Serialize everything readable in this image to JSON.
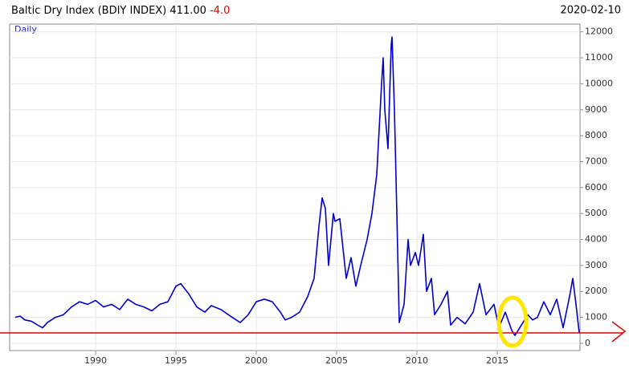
{
  "chart_data": {
    "type": "line",
    "title": "Baltic Dry Index (BDIY INDEX)",
    "last_value": "411.00",
    "change": "-4.0",
    "date": "2020-02-10",
    "x": [
      1985.0,
      1985.3,
      1985.6,
      1986.0,
      1986.4,
      1986.7,
      1987.0,
      1987.5,
      1988.0,
      1988.5,
      1989.0,
      1989.5,
      1990.0,
      1990.5,
      1991.0,
      1991.5,
      1992.0,
      1992.5,
      1993.0,
      1993.5,
      1994.0,
      1994.5,
      1995.0,
      1995.3,
      1995.8,
      1996.3,
      1996.8,
      1997.2,
      1997.8,
      1998.5,
      1999.0,
      1999.5,
      2000.0,
      2000.5,
      2001.0,
      2001.5,
      2001.8,
      2002.2,
      2002.7,
      2003.2,
      2003.6,
      2003.9,
      2004.1,
      2004.3,
      2004.5,
      2004.8,
      2004.9,
      2005.2,
      2005.6,
      2005.9,
      2006.2,
      2006.5,
      2006.9,
      2007.2,
      2007.5,
      2007.8,
      2007.9,
      2008.0,
      2008.2,
      2008.4,
      2008.45,
      2008.6,
      2008.75,
      2008.9,
      2009.2,
      2009.45,
      2009.6,
      2009.9,
      2010.1,
      2010.4,
      2010.6,
      2010.9,
      2011.1,
      2011.5,
      2011.9,
      2012.1,
      2012.5,
      2013.0,
      2013.5,
      2013.9,
      2014.3,
      2014.8,
      2015.1,
      2015.5,
      2015.9,
      2016.1,
      2016.5,
      2016.9,
      2017.2,
      2017.5,
      2017.9,
      2018.3,
      2018.7,
      2019.1,
      2019.5,
      2019.7,
      2019.9,
      2020.1
    ],
    "series": [
      {
        "name": "Daily",
        "color": "#0000cc",
        "values": [
          1000,
          1050,
          900,
          850,
          700,
          600,
          800,
          1000,
          1100,
          1400,
          1600,
          1500,
          1650,
          1400,
          1500,
          1300,
          1700,
          1500,
          1400,
          1250,
          1500,
          1600,
          2200,
          2300,
          1900,
          1400,
          1200,
          1450,
          1300,
          1000,
          800,
          1100,
          1600,
          1700,
          1600,
          1200,
          900,
          1000,
          1200,
          1800,
          2500,
          4500,
          5600,
          5200,
          3000,
          5000,
          4700,
          4800,
          2500,
          3300,
          2200,
          3000,
          4000,
          5000,
          6500,
          10000,
          11000,
          9000,
          7500,
          11500,
          11800,
          9000,
          5000,
          800,
          1500,
          4000,
          3000,
          3500,
          3000,
          4200,
          2000,
          2500,
          1100,
          1500,
          2000,
          700,
          1000,
          750,
          1200,
          2300,
          1100,
          1500,
          600,
          1200,
          500,
          300,
          700,
          1100,
          900,
          1000,
          1600,
          1100,
          1700,
          600,
          1800,
          2500,
          1500,
          411
        ]
      }
    ],
    "xlim": [
      1984.65,
      2020.15
    ],
    "ylim": [
      -280,
      12300
    ],
    "xticks": [
      1990,
      1995,
      2000,
      2005,
      2010,
      2015
    ],
    "yticks": [
      0,
      1000,
      2000,
      3000,
      4000,
      5000,
      6000,
      7000,
      8000,
      9000,
      10000,
      11000,
      12000
    ],
    "grid": true
  }
}
